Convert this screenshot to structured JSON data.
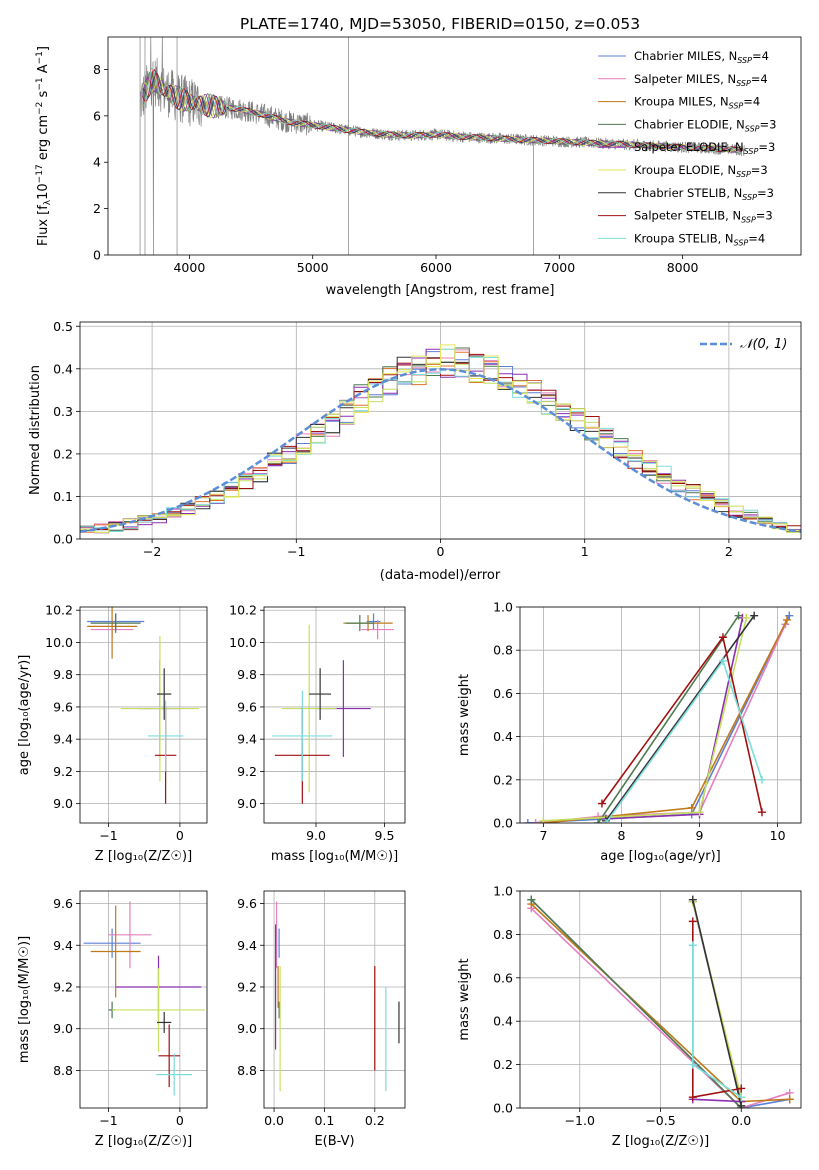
{
  "figure": {
    "title": "PLATE=1740, MJD=53050, FIBERID=0150, z=0.053"
  },
  "chart_data": [
    {
      "id": "spectrum",
      "type": "line",
      "title": "PLATE=1740, MJD=53050, FIBERID=0150, z=0.053",
      "xlabel": "wavelength [Angstrom, rest frame]",
      "ylabel": "Flux [fλ10⁻¹⁷ erg cm⁻² s⁻¹ A⁻¹]",
      "xlim": [
        3340,
        8960
      ],
      "ylim": [
        0,
        9.4
      ],
      "xticks": [
        4000,
        5000,
        6000,
        7000,
        8000
      ],
      "yticks": [
        0,
        2,
        4,
        6,
        8
      ],
      "grid": false,
      "legend_position": "top-right",
      "data_series_color": "#808080",
      "continuum_points": [
        [
          3600,
          6.6
        ],
        [
          3700,
          7.6
        ],
        [
          3800,
          7.1
        ],
        [
          3900,
          6.8
        ],
        [
          4000,
          6.6
        ],
        [
          4200,
          6.4
        ],
        [
          4400,
          6.3
        ],
        [
          4600,
          6.05
        ],
        [
          4800,
          5.75
        ],
        [
          5000,
          5.6
        ],
        [
          5200,
          5.45
        ],
        [
          5400,
          5.3
        ],
        [
          5600,
          5.2
        ],
        [
          5800,
          5.15
        ],
        [
          6000,
          5.2
        ],
        [
          6200,
          5.1
        ],
        [
          6400,
          5.05
        ],
        [
          6600,
          5.0
        ],
        [
          6800,
          4.95
        ],
        [
          7000,
          4.9
        ],
        [
          7200,
          4.85
        ],
        [
          7400,
          4.8
        ],
        [
          7600,
          4.75
        ],
        [
          7800,
          4.7
        ],
        [
          8000,
          4.65
        ],
        [
          8200,
          4.6
        ],
        [
          8400,
          4.55
        ],
        [
          8500,
          4.5
        ]
      ],
      "series": [
        {
          "name": "Chabrier MILES, N_SSP=4",
          "color": "#5b7fd6"
        },
        {
          "name": "Salpeter MILES, N_SSP=4",
          "color": "#e57fbf"
        },
        {
          "name": "Kroupa MILES, N_SSP=4",
          "color": "#c07a1a"
        },
        {
          "name": "Chabrier ELODIE, N_SSP=3",
          "color": "#4f7a4f"
        },
        {
          "name": "Salpeter ELODIE, N_SSP=3",
          "color": "#8b2fb0"
        },
        {
          "name": "Kroupa ELODIE, N_SSP=3",
          "color": "#e3e65a"
        },
        {
          "name": "Chabrier STELIB, N_SSP=3",
          "color": "#333333"
        },
        {
          "name": "Salpeter STELIB, N_SSP=3",
          "color": "#a01010"
        },
        {
          "name": "Kroupa STELIB, N_SSP=4",
          "color": "#7ddddd"
        }
      ]
    },
    {
      "id": "residuals",
      "type": "bar",
      "xlabel": "(data-model)/error",
      "ylabel": "Normed distribution",
      "xlim": [
        -2.5,
        2.5
      ],
      "ylim": [
        0,
        0.51
      ],
      "xticks": [
        -2,
        -1,
        0,
        1,
        2
      ],
      "yticks": [
        0.0,
        0.1,
        0.2,
        0.3,
        0.4,
        0.5
      ],
      "grid": true,
      "legend_position": "top-right",
      "legend_label": "𝒩(0, 1)",
      "gaussian_color": "#5b8ed6",
      "bin_width": 0.1,
      "histogram_colors": [
        "#5b7fd6",
        "#e57fbf",
        "#e07030",
        "#4f7a4f",
        "#8b2fb0",
        "#c5e060",
        "#333333",
        "#a01010",
        "#7ddddd",
        "#e3e65a"
      ],
      "base_values": [
        0.02,
        0.025,
        0.03,
        0.035,
        0.045,
        0.05,
        0.06,
        0.07,
        0.085,
        0.1,
        0.115,
        0.135,
        0.155,
        0.18,
        0.2,
        0.225,
        0.25,
        0.27,
        0.295,
        0.33,
        0.35,
        0.37,
        0.39,
        0.4,
        0.41,
        0.42,
        0.41,
        0.4,
        0.395,
        0.38,
        0.36,
        0.34,
        0.32,
        0.3,
        0.28,
        0.26,
        0.24,
        0.215,
        0.19,
        0.17,
        0.15,
        0.13,
        0.11,
        0.095,
        0.08,
        0.065,
        0.055,
        0.045,
        0.035,
        0.025
      ]
    },
    {
      "id": "age-vs-Z",
      "type": "scatter",
      "xlabel": "Z [log₁₀(Z/Z☉)]",
      "ylabel": "age  [log₁₀(age/yr)]",
      "xlim": [
        -1.4,
        0.38
      ],
      "ylim": [
        8.88,
        10.22
      ],
      "xticks": [
        -1,
        0
      ],
      "yticks": [
        9.0,
        9.2,
        9.4,
        9.6,
        9.8,
        10.0,
        10.2
      ],
      "grid": true,
      "points": [
        {
          "x": -0.9,
          "y": 10.13,
          "xerr": 0.4,
          "yerr": 0.05,
          "color": "#5b7fd6"
        },
        {
          "x": -0.95,
          "y": 10.08,
          "xerr": 0.3,
          "yerr": 0.05,
          "color": "#e57fbf"
        },
        {
          "x": -0.95,
          "y": 10.1,
          "xerr": 0.35,
          "yerr": 0.2,
          "color": "#c07a1a"
        },
        {
          "x": -0.9,
          "y": 10.12,
          "xerr": 0.35,
          "yerr": 0.06,
          "color": "#4f7a4f"
        },
        {
          "x": -0.28,
          "y": 9.59,
          "xerr": 0.3,
          "yerr": 0.3,
          "color": "#8b2fb0"
        },
        {
          "x": -0.28,
          "y": 9.59,
          "xerr": 0.55,
          "yerr": 0.45,
          "color": "#c5e060"
        },
        {
          "x": -0.22,
          "y": 9.68,
          "xerr": 0.1,
          "yerr": 0.16,
          "color": "#333333"
        },
        {
          "x": -0.2,
          "y": 9.3,
          "xerr": 0.15,
          "yerr": 0.3,
          "color": "#a01010"
        },
        {
          "x": -0.2,
          "y": 9.42,
          "xerr": 0.25,
          "yerr": 0.22,
          "color": "#7ddddd"
        }
      ]
    },
    {
      "id": "age-vs-mass",
      "type": "scatter",
      "xlabel": "mass [log₁₀(M/M☉)]",
      "xlim": [
        8.62,
        9.65
      ],
      "ylim": [
        8.88,
        10.22
      ],
      "xticks": [
        9.0,
        9.5
      ],
      "yticks": [
        9.0,
        9.2,
        9.4,
        9.6,
        9.8,
        10.0,
        10.2
      ],
      "grid": true,
      "points": [
        {
          "x": 9.42,
          "y": 10.13,
          "xerr": 0.05,
          "yerr": 0.05,
          "color": "#5b7fd6"
        },
        {
          "x": 9.45,
          "y": 10.08,
          "xerr": 0.12,
          "yerr": 0.06,
          "color": "#e57fbf"
        },
        {
          "x": 9.38,
          "y": 10.12,
          "xerr": 0.18,
          "yerr": 0.05,
          "color": "#c07a1a"
        },
        {
          "x": 9.32,
          "y": 10.12,
          "xerr": 0.1,
          "yerr": 0.05,
          "color": "#4f7a4f"
        },
        {
          "x": 9.2,
          "y": 9.59,
          "xerr": 0.2,
          "yerr": 0.3,
          "color": "#8b2fb0"
        },
        {
          "x": 8.95,
          "y": 9.59,
          "xerr": 0.2,
          "yerr": 0.52,
          "color": "#c5e060"
        },
        {
          "x": 9.03,
          "y": 9.68,
          "xerr": 0.08,
          "yerr": 0.16,
          "color": "#333333"
        },
        {
          "x": 8.9,
          "y": 9.3,
          "xerr": 0.2,
          "yerr": 0.3,
          "color": "#a01010"
        },
        {
          "x": 8.9,
          "y": 9.42,
          "xerr": 0.22,
          "yerr": 0.28,
          "color": "#7ddddd"
        }
      ]
    },
    {
      "id": "massweight-vs-age",
      "type": "line",
      "xlabel": "age  [log₁₀(age/yr)]",
      "ylabel": "mass weight",
      "xlim": [
        6.7,
        10.3
      ],
      "ylim": [
        0,
        1
      ],
      "xticks": [
        7,
        8,
        9,
        10
      ],
      "yticks": [
        0.0,
        0.2,
        0.4,
        0.6,
        0.8,
        1.0
      ],
      "grid": true,
      "series": [
        {
          "color": "#5b7fd6",
          "points": [
            [
              6.8,
              0.0
            ],
            [
              8.9,
              0.04
            ],
            [
              10.15,
              0.96
            ]
          ]
        },
        {
          "color": "#e57fbf",
          "points": [
            [
              6.9,
              0.0
            ],
            [
              7.7,
              0.03
            ],
            [
              9.0,
              0.05
            ],
            [
              10.1,
              0.92
            ]
          ]
        },
        {
          "color": "#c07a1a",
          "points": [
            [
              7.0,
              0.0
            ],
            [
              8.9,
              0.07
            ],
            [
              10.12,
              0.94
            ]
          ]
        },
        {
          "color": "#4f7a4f",
          "points": [
            [
              7.7,
              0.0
            ],
            [
              9.5,
              0.96
            ]
          ]
        },
        {
          "color": "#8b2fb0",
          "points": [
            [
              7.8,
              0.02
            ],
            [
              9.0,
              0.04
            ],
            [
              9.55,
              0.95
            ]
          ]
        },
        {
          "color": "#c5e060",
          "points": [
            [
              7.0,
              0.01
            ],
            [
              9.0,
              0.05
            ],
            [
              9.6,
              0.95
            ]
          ]
        },
        {
          "color": "#333333",
          "points": [
            [
              7.8,
              0.01
            ],
            [
              9.7,
              0.96
            ]
          ]
        },
        {
          "color": "#a01010",
          "points": [
            [
              7.75,
              0.09
            ],
            [
              9.3,
              0.86
            ],
            [
              9.8,
              0.05
            ]
          ]
        },
        {
          "color": "#7ddddd",
          "points": [
            [
              7.8,
              0.0
            ],
            [
              9.3,
              0.75
            ],
            [
              9.8,
              0.2
            ]
          ]
        }
      ]
    },
    {
      "id": "mass-vs-Z",
      "type": "scatter",
      "xlabel": "Z [log₁₀(Z/Z☉)]",
      "ylabel": "mass [log₁₀(M/M☉)]",
      "xlim": [
        -1.4,
        0.38
      ],
      "ylim": [
        8.62,
        9.66
      ],
      "xticks": [
        -1,
        0
      ],
      "yticks": [
        8.8,
        9.0,
        9.2,
        9.4,
        9.6
      ],
      "grid": true,
      "points": [
        {
          "x": -0.95,
          "y": 9.41,
          "xerr": 0.4,
          "yerr": 0.07,
          "color": "#5b7fd6"
        },
        {
          "x": -0.7,
          "y": 9.45,
          "xerr": 0.3,
          "yerr": 0.16,
          "color": "#e57fbf"
        },
        {
          "x": -0.9,
          "y": 9.37,
          "xerr": 0.35,
          "yerr": 0.22,
          "color": "#c07a1a"
        },
        {
          "x": -0.95,
          "y": 9.09,
          "xerr": 0.05,
          "yerr": 0.04,
          "color": "#4f7a4f"
        },
        {
          "x": -0.3,
          "y": 9.2,
          "xerr": 0.6,
          "yerr": 0.15,
          "color": "#8b2fb0"
        },
        {
          "x": -0.3,
          "y": 9.09,
          "xerr": 0.65,
          "yerr": 0.2,
          "color": "#c5e060"
        },
        {
          "x": -0.22,
          "y": 9.03,
          "xerr": 0.1,
          "yerr": 0.05,
          "color": "#333333"
        },
        {
          "x": -0.15,
          "y": 8.87,
          "xerr": 0.15,
          "yerr": 0.15,
          "color": "#a01010"
        },
        {
          "x": -0.08,
          "y": 8.78,
          "xerr": 0.25,
          "yerr": 0.1,
          "color": "#7ddddd"
        }
      ]
    },
    {
      "id": "mass-vs-EBV",
      "type": "scatter",
      "xlabel": "E(B-V)",
      "xlim": [
        -0.02,
        0.26
      ],
      "ylim": [
        8.62,
        9.66
      ],
      "xticks": [
        0.0,
        0.1,
        0.2
      ],
      "yticks": [
        8.8,
        9.0,
        9.2,
        9.4,
        9.6
      ],
      "grid": true,
      "points": [
        {
          "x": 0.01,
          "y": 9.41,
          "xerr": 0.0,
          "yerr": 0.07,
          "color": "#5b7fd6"
        },
        {
          "x": 0.005,
          "y": 9.45,
          "xerr": 0.0,
          "yerr": 0.16,
          "color": "#e57fbf"
        },
        {
          "x": 0.008,
          "y": 9.2,
          "xerr": 0.0,
          "yerr": 0.1,
          "color": "#c07a1a"
        },
        {
          "x": 0.01,
          "y": 9.09,
          "xerr": 0.0,
          "yerr": 0.04,
          "color": "#4f7a4f"
        },
        {
          "x": 0.003,
          "y": 9.2,
          "xerr": 0.0,
          "yerr": 0.3,
          "color": "#8b2fb0"
        },
        {
          "x": 0.012,
          "y": 9.0,
          "xerr": 0.0,
          "yerr": 0.3,
          "color": "#c5e060"
        },
        {
          "x": 0.248,
          "y": 9.03,
          "xerr": 0.0,
          "yerr": 0.1,
          "color": "#333333"
        },
        {
          "x": 0.2,
          "y": 9.05,
          "xerr": 0.0,
          "yerr": 0.25,
          "color": "#a01010"
        },
        {
          "x": 0.222,
          "y": 8.95,
          "xerr": 0.0,
          "yerr": 0.25,
          "color": "#7ddddd"
        }
      ]
    },
    {
      "id": "massweight-vs-Z",
      "type": "line",
      "xlabel": "Z [log₁₀(Z/Z☉)]",
      "ylabel": "mass weight",
      "xlim": [
        -1.37,
        0.37
      ],
      "ylim": [
        0,
        1
      ],
      "xticks": [
        -1.0,
        -0.5,
        0.0
      ],
      "yticks": [
        0.0,
        0.2,
        0.4,
        0.6,
        0.8,
        1.0
      ],
      "grid": true,
      "series": [
        {
          "color": "#5b7fd6",
          "points": [
            [
              -1.3,
              0.96
            ],
            [
              0.0,
              0.0
            ],
            [
              0.3,
              0.04
            ]
          ]
        },
        {
          "color": "#e57fbf",
          "points": [
            [
              -1.3,
              0.92
            ],
            [
              0.0,
              0.0
            ],
            [
              0.3,
              0.07
            ]
          ]
        },
        {
          "color": "#c07a1a",
          "points": [
            [
              -1.3,
              0.94
            ],
            [
              0.0,
              0.03
            ],
            [
              0.3,
              0.04
            ]
          ]
        },
        {
          "color": "#4f7a4f",
          "points": [
            [
              -1.3,
              0.96
            ],
            [
              0.0,
              0.0
            ]
          ]
        },
        {
          "color": "#8b2fb0",
          "points": [
            [
              -0.3,
              0.95
            ],
            [
              0.0,
              0.03
            ],
            [
              -0.3,
              0.04
            ]
          ]
        },
        {
          "color": "#c5e060",
          "points": [
            [
              -0.3,
              0.95
            ],
            [
              0.0,
              0.05
            ]
          ]
        },
        {
          "color": "#333333",
          "points": [
            [
              -0.3,
              0.96
            ],
            [
              0.0,
              0.01
            ]
          ]
        },
        {
          "color": "#a01010",
          "points": [
            [
              -0.3,
              0.86
            ],
            [
              -0.3,
              0.05
            ],
            [
              0.0,
              0.09
            ]
          ]
        },
        {
          "color": "#7ddddd",
          "points": [
            [
              -0.3,
              0.75
            ],
            [
              -0.3,
              0.2
            ],
            [
              0.0,
              0.05
            ]
          ]
        }
      ]
    }
  ]
}
